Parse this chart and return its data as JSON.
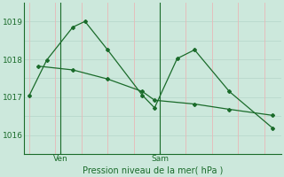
{
  "bg_color": "#cce8dc",
  "grid_color_h": "#b8d8cc",
  "grid_color_v": "#e8b8b8",
  "line_color": "#1a6b2a",
  "ylabel": "Pression niveau de la mer( hPa )",
  "ylim": [
    1015.5,
    1019.5
  ],
  "yticks": [
    1016,
    1017,
    1018,
    1019
  ],
  "series1_x": [
    0,
    1,
    2.5,
    3.2,
    4.5,
    6.5,
    7.2,
    8.5,
    9.5,
    11.5,
    14.0
  ],
  "series1_y": [
    1017.05,
    1017.98,
    1018.85,
    1019.0,
    1018.25,
    1017.05,
    1016.72,
    1018.02,
    1018.25,
    1017.15,
    1016.18
  ],
  "series2_x": [
    0.5,
    2.5,
    4.5,
    6.5,
    7.2,
    9.5,
    11.5,
    14.0
  ],
  "series2_y": [
    1017.82,
    1017.72,
    1017.48,
    1017.15,
    1016.92,
    1016.82,
    1016.68,
    1016.52
  ],
  "x_ven": 1.8,
  "x_sam": 7.5,
  "xtick_positions": [
    1.8,
    7.5
  ],
  "xtick_labels": [
    "Ven",
    "Sam"
  ],
  "xmin": -0.3,
  "xmax": 14.5,
  "vgrid_x": [
    0,
    1.5,
    3.0,
    4.5,
    6.0,
    7.5,
    9.0,
    10.5,
    12.0,
    13.5
  ],
  "hgrid_y": [
    1016,
    1016.5,
    1017,
    1017.5,
    1018,
    1018.5,
    1019
  ],
  "title_fontsize": 7,
  "tick_fontsize": 6.5
}
